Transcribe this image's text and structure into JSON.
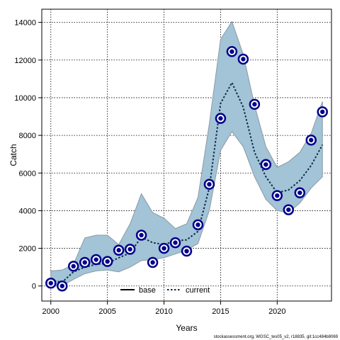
{
  "chart_data": {
    "type": "line",
    "xlabel": "Years",
    "ylabel": "Catch",
    "xlim": [
      1999.2,
      2024.8
    ],
    "ylim": [
      -800,
      14700
    ],
    "x_ticks": [
      2000,
      2005,
      2010,
      2015,
      2020
    ],
    "y_ticks": [
      0,
      2000,
      4000,
      6000,
      8000,
      10000,
      12000,
      14000
    ],
    "grid": true,
    "legend": {
      "position": "bottom-center",
      "entries": [
        {
          "label": "base",
          "style": "solid",
          "color": "#000000"
        },
        {
          "label": "current",
          "style": "dotted",
          "color": "#0b2a4a"
        }
      ]
    },
    "colors": {
      "band_fill": "#a3c3d6",
      "band_stroke": "#8a9aa5",
      "obs_points": "#00008b",
      "fit_line": "#0b2a4a"
    },
    "observed": {
      "x": [
        2000,
        2001,
        2002,
        2003,
        2004,
        2005,
        2006,
        2007,
        2008,
        2009,
        2010,
        2011,
        2012,
        2013,
        2014,
        2015,
        2016,
        2017,
        2018,
        2019,
        2020,
        2021,
        2022,
        2023,
        2024
      ],
      "y": [
        150,
        0,
        1050,
        1250,
        1400,
        1300,
        1900,
        1950,
        2700,
        1250,
        2000,
        2300,
        1850,
        3250,
        5400,
        8900,
        12450,
        12050,
        9650,
        6450,
        4800,
        4050,
        4950,
        7750,
        9250
      ]
    },
    "fitted": {
      "x": [
        2000,
        2001,
        2002,
        2003,
        2004,
        2005,
        2006,
        2007,
        2008,
        2009,
        2010,
        2011,
        2012,
        2013,
        2014,
        2015,
        2016,
        2017,
        2018,
        2019,
        2020,
        2021,
        2022,
        2023,
        2024
      ],
      "y": [
        300,
        200,
        750,
        1000,
        1150,
        1200,
        1500,
        1750,
        2600,
        2300,
        2200,
        2400,
        2450,
        2900,
        5200,
        9700,
        10800,
        9500,
        7100,
        5800,
        4950,
        5100,
        5600,
        6400,
        7500
      ]
    },
    "band": {
      "x": [
        2000,
        2001,
        2002,
        2003,
        2004,
        2005,
        2006,
        2007,
        2008,
        2009,
        2010,
        2011,
        2012,
        2013,
        2014,
        2015,
        2016,
        2017,
        2018,
        2019,
        2020,
        2021,
        2022,
        2023,
        2024
      ],
      "upper": [
        800,
        850,
        1150,
        2550,
        2700,
        2700,
        2200,
        3300,
        4900,
        3900,
        3600,
        3050,
        3300,
        4700,
        8600,
        13100,
        14050,
        12300,
        9600,
        7400,
        6300,
        6600,
        7100,
        8100,
        9800
      ],
      "lower": [
        0,
        0,
        350,
        650,
        800,
        850,
        750,
        1000,
        1350,
        1400,
        1500,
        1700,
        1900,
        2250,
        4000,
        7200,
        8200,
        7400,
        5800,
        4600,
        4000,
        3900,
        4400,
        5200,
        5800
      ]
    },
    "footnote": "stockassessment.org, WGSC_tes05_v2, r18835, git:1cc484b8069"
  }
}
